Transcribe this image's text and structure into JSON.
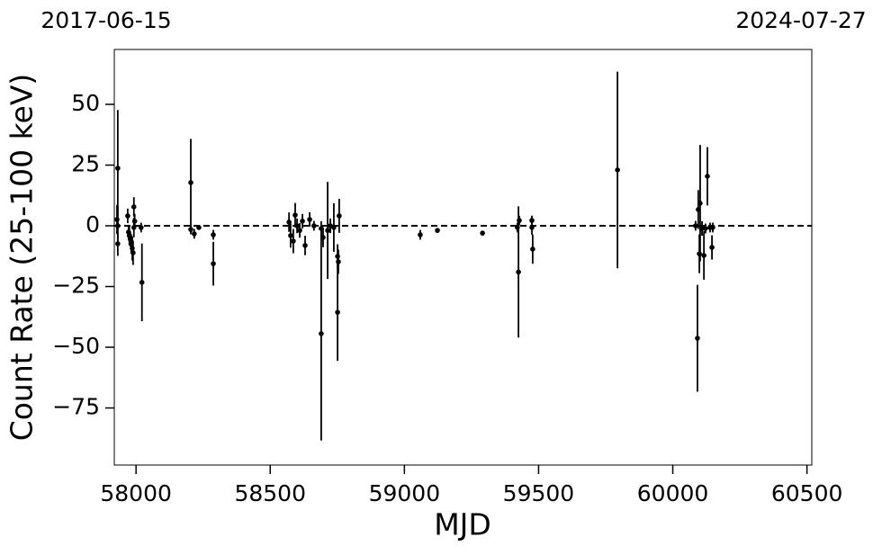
{
  "chart_data": {
    "type": "errorbar",
    "top_labels": [
      "2017-06-15",
      "2024-07-27"
    ],
    "x_label": "MJD",
    "y_label": "Count Rate (25-100 keV)",
    "xlim": [
      57919,
      60518
    ],
    "ylim": [
      -98.5,
      72.6
    ],
    "xticks": [
      58000,
      58500,
      59000,
      59500,
      60000,
      60500
    ],
    "yticks": [
      {
        "value": -75,
        "label": "−75"
      },
      {
        "value": -50,
        "label": "−50"
      },
      {
        "value": -25,
        "label": "−25"
      },
      0,
      25,
      50
    ],
    "hline": 0,
    "color": "#000000",
    "series": [
      {
        "name": "data",
        "x": [
          57932,
          57929,
          57932,
          57932,
          57969,
          57972,
          57975,
          57979,
          57982,
          57986,
          57989,
          57992,
          57995,
          57992,
          58022,
          58019,
          58204,
          58204,
          58217,
          58234,
          58288,
          58288,
          58570,
          58576,
          58586,
          58593,
          58600,
          58610,
          58620,
          58630,
          58647,
          58663,
          58690,
          58690,
          58697,
          58714,
          58724,
          58737,
          58751,
          58751,
          58757,
          58754,
          59059,
          59123,
          59291,
          59421,
          59425,
          59428,
          59475,
          59475,
          59478,
          59794,
          60085,
          60092,
          60095,
          60099,
          60102,
          60109,
          60116,
          60122,
          60129,
          60139,
          60146,
          60149
        ],
        "values": [
          23.7,
          2.6,
          0,
          -7.4,
          4.1,
          -2.6,
          -4,
          -5.6,
          -7.4,
          -9.3,
          -11.1,
          -0.7,
          1.9,
          7.8,
          -23.3,
          -0.7,
          17.8,
          -1.5,
          -3.3,
          -0.7,
          -3.7,
          -15.6,
          1.5,
          -4,
          -6.3,
          4.4,
          0,
          -1.9,
          1.9,
          -8.1,
          2.6,
          0,
          -44.4,
          -1.1,
          -4.8,
          -1.9,
          0,
          -0.7,
          -35.6,
          -12.6,
          4.1,
          -14.8,
          -3.7,
          -1.9,
          -3,
          -0.7,
          -19,
          2.2,
          2.2,
          -0.7,
          -9.6,
          23,
          0,
          -46.3,
          6.7,
          -11.5,
          9.3,
          -1.1,
          -12.2,
          -1.1,
          20.4,
          -0.7,
          -8.9,
          -0.7
        ],
        "errors": [
          24,
          6,
          8,
          5,
          3,
          3,
          4,
          3,
          4,
          5,
          5,
          4,
          3,
          4,
          16,
          2,
          18,
          2,
          2,
          1,
          2,
          9,
          4,
          5,
          5,
          5,
          3,
          3,
          3,
          4,
          3,
          2,
          44,
          3,
          4,
          20,
          3,
          10,
          20,
          5,
          7,
          5,
          2,
          1,
          1,
          2,
          27,
          2,
          2,
          3,
          6,
          40.5,
          2,
          22,
          8,
          8,
          24,
          3,
          10,
          2,
          12,
          2,
          5,
          2
        ]
      }
    ]
  }
}
